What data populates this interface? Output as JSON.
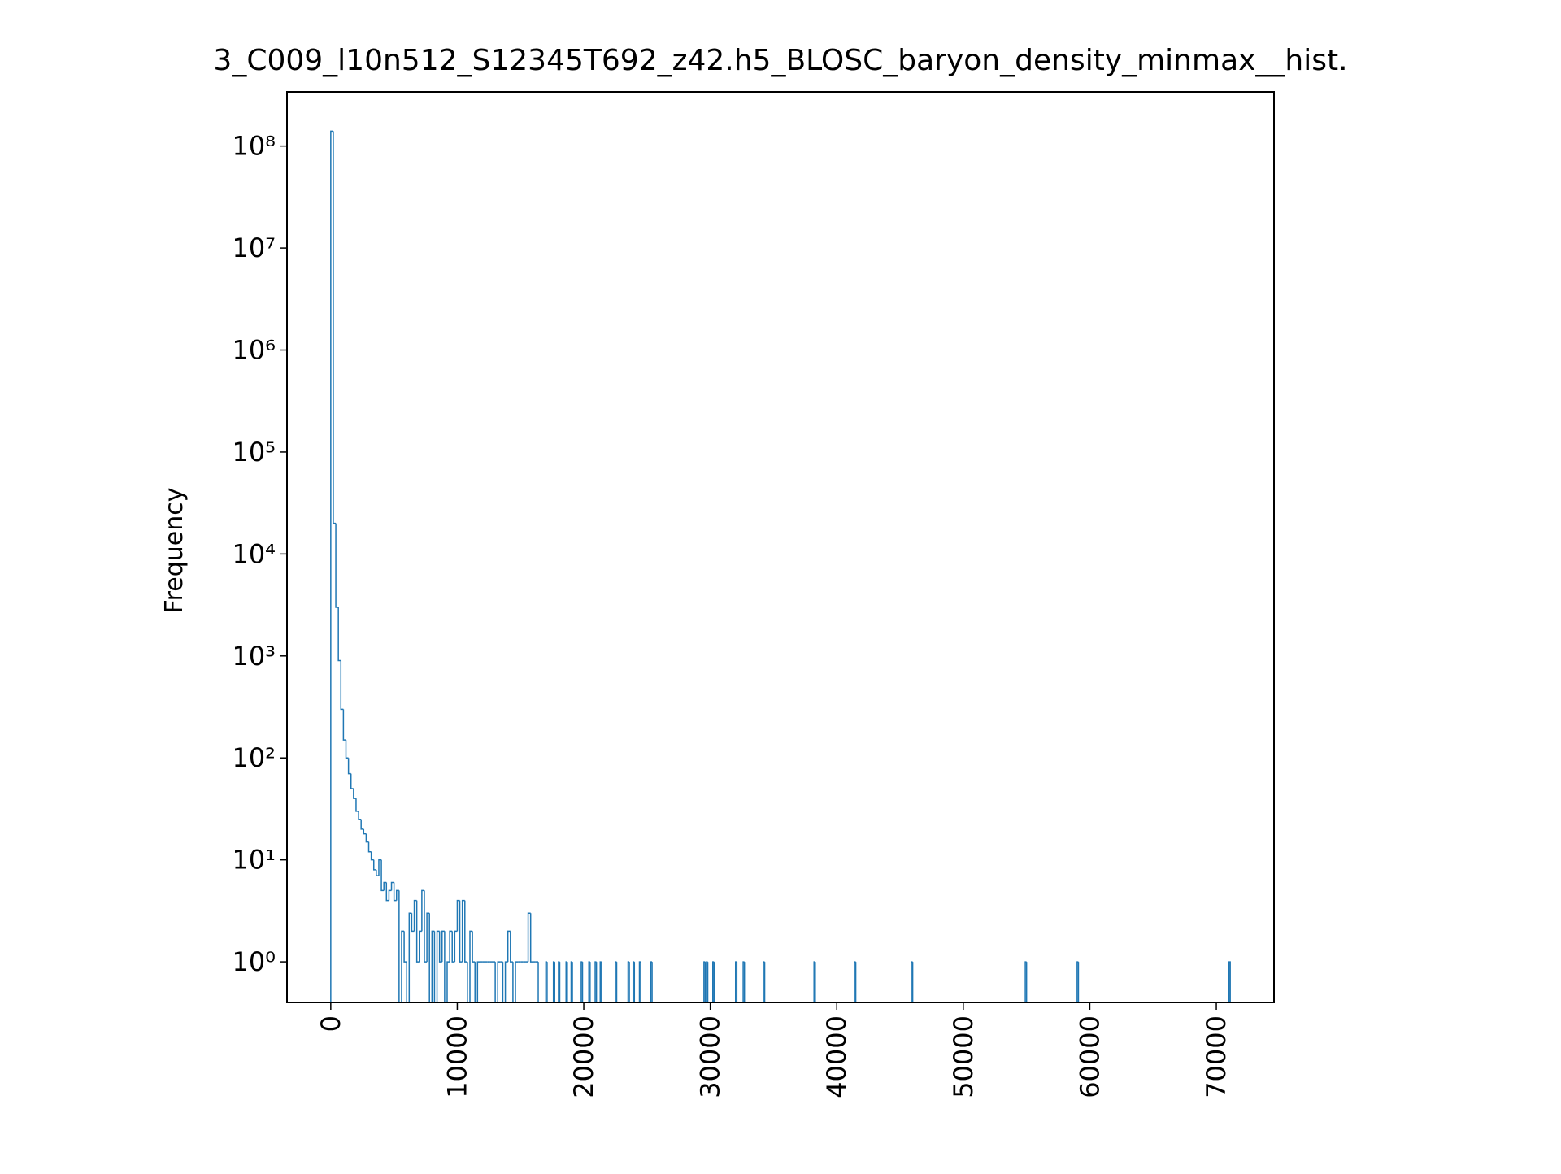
{
  "chart_data": {
    "type": "histogram",
    "histtype": "step",
    "title": "3_C009_l10n512_S12345T692_z42.h5_BLOSC_baryon_density_minmax__hist.",
    "ylabel": "Frequency",
    "yscale": "log",
    "color": "#1f77b4",
    "xlim": [
      -3460,
      74560
    ],
    "ylim": [
      0.4,
      340000000
    ],
    "xticks": [
      0,
      10000,
      20000,
      30000,
      40000,
      50000,
      60000,
      70000
    ],
    "yticks": [
      {
        "value": 1,
        "label": "10⁰"
      },
      {
        "value": 10,
        "label": "10¹"
      },
      {
        "value": 100,
        "label": "10²"
      },
      {
        "value": 1000,
        "label": "10³"
      },
      {
        "value": 10000,
        "label": "10⁴"
      },
      {
        "value": 100000,
        "label": "10⁵"
      },
      {
        "value": 1000000,
        "label": "10⁶"
      },
      {
        "value": 10000000,
        "label": "10⁷"
      },
      {
        "value": 100000000,
        "label": "10⁸"
      }
    ],
    "bins": [
      0,
      200,
      400,
      600,
      800,
      1000,
      1200,
      1400,
      1600,
      1800,
      2000,
      2200,
      2400,
      2600,
      2800,
      3000,
      3200,
      3400,
      3600,
      3800,
      4000,
      4200,
      4400,
      4600,
      4800,
      5000,
      5200,
      5400,
      5600,
      5800,
      6000,
      6200,
      6400,
      6600,
      6800,
      7000,
      7200,
      7400,
      7600,
      7800,
      8000,
      8200,
      8400,
      8600,
      8800,
      9000,
      9200,
      9400,
      9600,
      9800,
      10000,
      10200,
      10400,
      10600,
      10800,
      11000,
      11200,
      11400,
      11600,
      11800,
      12000,
      12200,
      12400,
      12600,
      12800,
      13000,
      13200,
      13400,
      13600,
      13800,
      14000,
      14200,
      14400,
      14600,
      14800,
      15000,
      15200,
      15400,
      15600,
      15800,
      16000,
      16200,
      16400,
      17000,
      17100,
      17600,
      17700,
      18000,
      18100,
      18600,
      18700,
      19000,
      19100,
      19800,
      19900,
      20400,
      20500,
      20900,
      21000,
      21300,
      21400,
      22500,
      22600,
      23500,
      23600,
      23900,
      24000,
      24400,
      24500,
      25300,
      25400,
      29500,
      29600,
      29700,
      29800,
      30200,
      30300,
      32000,
      32100,
      32600,
      32700,
      34200,
      34300,
      38200,
      38300,
      41400,
      41500,
      45900,
      46000,
      54900,
      55000,
      59000,
      59100,
      71000,
      71100
    ],
    "counts": [
      140000000,
      20000,
      3000,
      900,
      300,
      150,
      100,
      70,
      50,
      40,
      30,
      25,
      20,
      18,
      15,
      12,
      10,
      8,
      7,
      10,
      5,
      6,
      4,
      5,
      6,
      4,
      5,
      0,
      2,
      1,
      0,
      3,
      2,
      4,
      1,
      2,
      5,
      1,
      3,
      0,
      2,
      0,
      2,
      1,
      2,
      0,
      1,
      2,
      1,
      2,
      4,
      1,
      4,
      1,
      0,
      2,
      1,
      0,
      1,
      1,
      1,
      1,
      1,
      1,
      1,
      0,
      1,
      1,
      0,
      1,
      2,
      1,
      0,
      1,
      1,
      1,
      1,
      1,
      3,
      1,
      1,
      1,
      0,
      1,
      0,
      1,
      0,
      1,
      0,
      1,
      0,
      1,
      0,
      1,
      0,
      1,
      0,
      1,
      0,
      1,
      0,
      1,
      0,
      1,
      0,
      1,
      0,
      1,
      0,
      1,
      0,
      1,
      0,
      1,
      0,
      1,
      0,
      1,
      0,
      1,
      0,
      1,
      0,
      1,
      0,
      1,
      0,
      1,
      0,
      1,
      0,
      1,
      0,
      1
    ]
  }
}
